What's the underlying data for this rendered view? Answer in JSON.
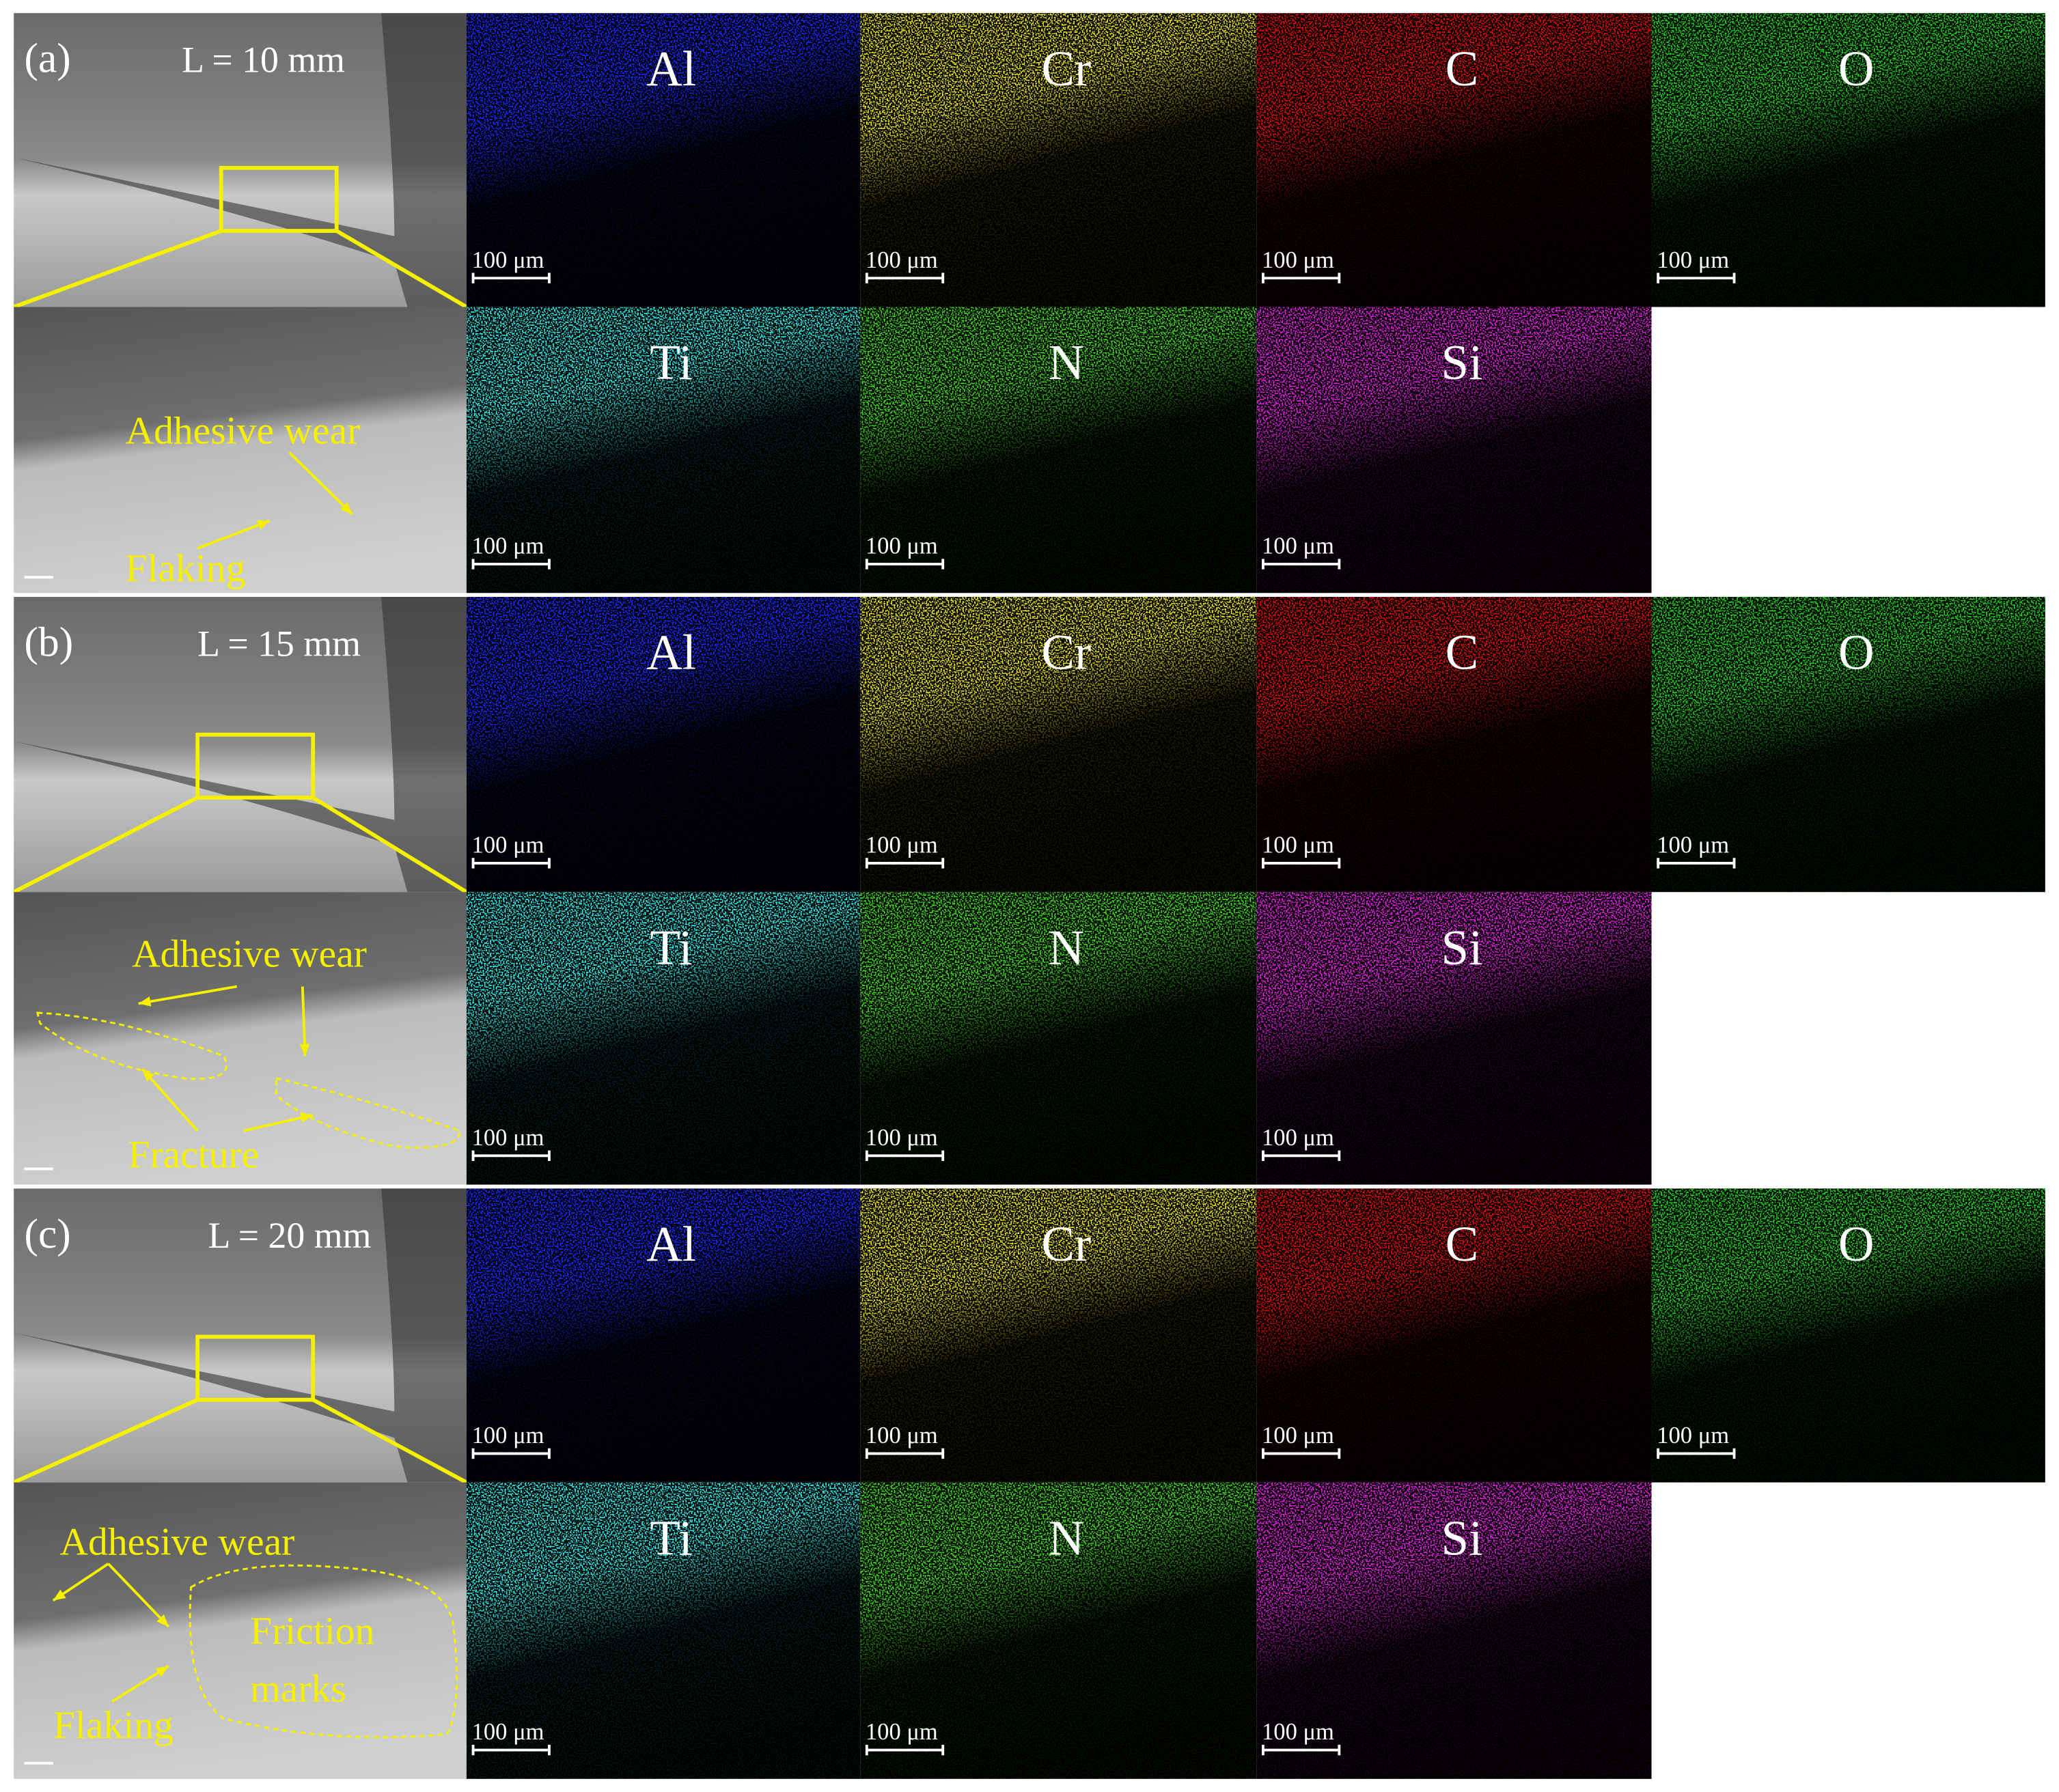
{
  "rows": [
    {
      "label": "(a)",
      "length": "L = 10 mm",
      "annotations": [
        "Adhesive wear",
        "Flaking"
      ],
      "maps": [
        {
          "element": "Al",
          "color": "#1a2cff",
          "scale": "100 μm"
        },
        {
          "element": "Cr",
          "color": "#e8e020",
          "scale": "100 μm"
        },
        {
          "element": "C",
          "color": "#e01010",
          "scale": "100 μm"
        },
        {
          "element": "O",
          "color": "#20d020",
          "scale": "100 μm"
        },
        {
          "element": "Ti",
          "color": "#30e8e8",
          "scale": "100 μm"
        },
        {
          "element": "N",
          "color": "#40d820",
          "scale": "100 μm"
        },
        {
          "element": "Si",
          "color": "#e020e0",
          "scale": "100 μm"
        }
      ]
    },
    {
      "label": "(b)",
      "length": "L = 15 mm",
      "annotations": [
        "Adhesive wear",
        "Fracture"
      ],
      "maps": [
        {
          "element": "Al",
          "color": "#1a2cff",
          "scale": "100 μm"
        },
        {
          "element": "Cr",
          "color": "#e8e020",
          "scale": "100 μm"
        },
        {
          "element": "C",
          "color": "#e01010",
          "scale": "100 μm"
        },
        {
          "element": "O",
          "color": "#20d020",
          "scale": "100 μm"
        },
        {
          "element": "Ti",
          "color": "#30e8e8",
          "scale": "100 μm"
        },
        {
          "element": "N",
          "color": "#40d820",
          "scale": "100 μm"
        },
        {
          "element": "Si",
          "color": "#e020e0",
          "scale": "100 μm"
        }
      ]
    },
    {
      "label": "(c)",
      "length": "L = 20 mm",
      "annotations": [
        "Adhesive wear",
        "Friction",
        "marks",
        "Flaking"
      ],
      "maps": [
        {
          "element": "Al",
          "color": "#1a2cff",
          "scale": "100 μm"
        },
        {
          "element": "Cr",
          "color": "#e8e020",
          "scale": "100 μm"
        },
        {
          "element": "C",
          "color": "#e01010",
          "scale": "100 μm"
        },
        {
          "element": "O",
          "color": "#20d020",
          "scale": "100 μm"
        },
        {
          "element": "Ti",
          "color": "#30e8e8",
          "scale": "100 μm"
        },
        {
          "element": "N",
          "color": "#40d820",
          "scale": "100 μm"
        },
        {
          "element": "Si",
          "color": "#e020e0",
          "scale": "100 μm"
        }
      ]
    }
  ]
}
